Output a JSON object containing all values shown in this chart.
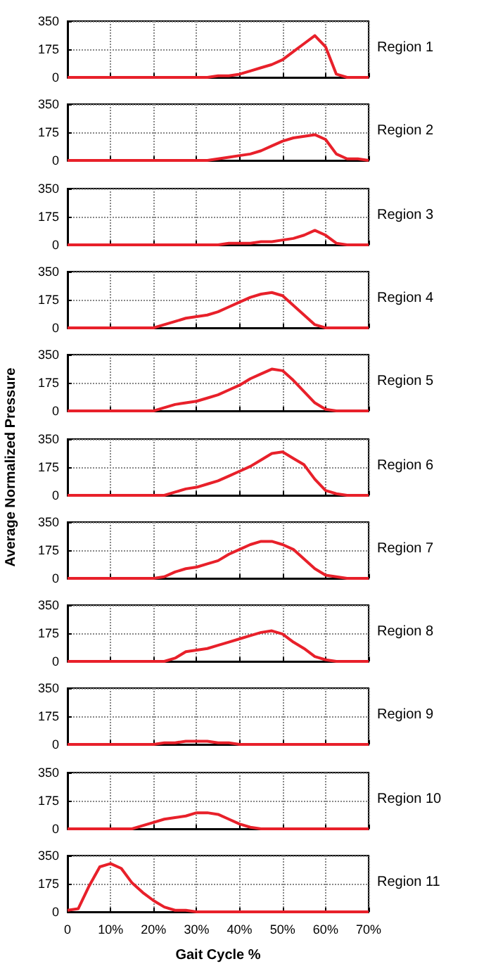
{
  "chart_data": [
    {
      "type": "line",
      "annotations": [
        "Region 1"
      ],
      "x": [
        0,
        2.5,
        5,
        7.5,
        10,
        12.5,
        15,
        17.5,
        20,
        22.5,
        25,
        27.5,
        30,
        32.5,
        35,
        37.5,
        40,
        42.5,
        45,
        47.5,
        50,
        52.5,
        55,
        57.5,
        60,
        62.5,
        65,
        67.5,
        70
      ],
      "series": [
        {
          "color": "#e8202a",
          "values": [
            0,
            0,
            0,
            0,
            0,
            0,
            0,
            0,
            0,
            0,
            0,
            0,
            0,
            0,
            10,
            10,
            20,
            40,
            60,
            80,
            110,
            160,
            210,
            260,
            190,
            20,
            0,
            0,
            0
          ]
        }
      ],
      "xlim": [
        0,
        70
      ],
      "xticks": [
        0,
        10,
        20,
        30,
        40,
        50,
        60,
        70
      ],
      "ylim": [
        0,
        350
      ],
      "yticks": [
        0,
        175,
        350
      ],
      "grid": true,
      "tick_labels": "y"
    },
    {
      "type": "line",
      "annotations": [
        "Region 2"
      ],
      "x": [
        0,
        2.5,
        5,
        7.5,
        10,
        12.5,
        15,
        17.5,
        20,
        22.5,
        25,
        27.5,
        30,
        32.5,
        35,
        37.5,
        40,
        42.5,
        45,
        47.5,
        50,
        52.5,
        55,
        57.5,
        60,
        62.5,
        65,
        67.5,
        70
      ],
      "series": [
        {
          "color": "#e8202a",
          "values": [
            0,
            0,
            0,
            0,
            0,
            0,
            0,
            0,
            0,
            0,
            0,
            0,
            0,
            0,
            10,
            20,
            30,
            40,
            60,
            90,
            120,
            140,
            150,
            160,
            130,
            40,
            10,
            10,
            0
          ]
        }
      ],
      "xlim": [
        0,
        70
      ],
      "xticks": [
        0,
        10,
        20,
        30,
        40,
        50,
        60,
        70
      ],
      "ylim": [
        0,
        350
      ],
      "yticks": [
        0,
        175,
        350
      ],
      "grid": true,
      "tick_labels": "y"
    },
    {
      "type": "line",
      "annotations": [
        "Region 3"
      ],
      "x": [
        0,
        2.5,
        5,
        7.5,
        10,
        12.5,
        15,
        17.5,
        20,
        22.5,
        25,
        27.5,
        30,
        32.5,
        35,
        37.5,
        40,
        42.5,
        45,
        47.5,
        50,
        52.5,
        55,
        57.5,
        60,
        62.5,
        65,
        67.5,
        70
      ],
      "series": [
        {
          "color": "#e8202a",
          "values": [
            0,
            0,
            0,
            0,
            0,
            0,
            0,
            0,
            0,
            0,
            0,
            0,
            0,
            0,
            0,
            10,
            10,
            10,
            20,
            20,
            30,
            40,
            60,
            90,
            60,
            10,
            0,
            0,
            0
          ]
        }
      ],
      "xlim": [
        0,
        70
      ],
      "xticks": [
        0,
        10,
        20,
        30,
        40,
        50,
        60,
        70
      ],
      "ylim": [
        0,
        350
      ],
      "yticks": [
        0,
        175,
        350
      ],
      "grid": true,
      "tick_labels": "y"
    },
    {
      "type": "line",
      "annotations": [
        "Region 4"
      ],
      "x": [
        0,
        2.5,
        5,
        7.5,
        10,
        12.5,
        15,
        17.5,
        20,
        22.5,
        25,
        27.5,
        30,
        32.5,
        35,
        37.5,
        40,
        42.5,
        45,
        47.5,
        50,
        52.5,
        55,
        57.5,
        60,
        62.5,
        65,
        67.5,
        70
      ],
      "series": [
        {
          "color": "#e8202a",
          "values": [
            0,
            0,
            0,
            0,
            0,
            0,
            0,
            0,
            0,
            20,
            40,
            60,
            70,
            80,
            100,
            130,
            160,
            190,
            210,
            220,
            200,
            140,
            80,
            20,
            0,
            0,
            0,
            0,
            0
          ]
        }
      ],
      "xlim": [
        0,
        70
      ],
      "xticks": [
        0,
        10,
        20,
        30,
        40,
        50,
        60,
        70
      ],
      "ylim": [
        0,
        350
      ],
      "yticks": [
        0,
        175,
        350
      ],
      "grid": true,
      "tick_labels": "y"
    },
    {
      "type": "line",
      "annotations": [
        "Region 5"
      ],
      "x": [
        0,
        2.5,
        5,
        7.5,
        10,
        12.5,
        15,
        17.5,
        20,
        22.5,
        25,
        27.5,
        30,
        32.5,
        35,
        37.5,
        40,
        42.5,
        45,
        47.5,
        50,
        52.5,
        55,
        57.5,
        60,
        62.5,
        65,
        67.5,
        70
      ],
      "series": [
        {
          "color": "#e8202a",
          "values": [
            0,
            0,
            0,
            0,
            0,
            0,
            0,
            0,
            0,
            20,
            40,
            50,
            60,
            80,
            100,
            130,
            160,
            200,
            230,
            260,
            250,
            190,
            120,
            50,
            10,
            0,
            0,
            0,
            0
          ]
        }
      ],
      "xlim": [
        0,
        70
      ],
      "xticks": [
        0,
        10,
        20,
        30,
        40,
        50,
        60,
        70
      ],
      "ylim": [
        0,
        350
      ],
      "yticks": [
        0,
        175,
        350
      ],
      "grid": true,
      "tick_labels": "y"
    },
    {
      "type": "line",
      "annotations": [
        "Region 6"
      ],
      "ylabel": "Average Normalized Pressure",
      "x": [
        0,
        2.5,
        5,
        7.5,
        10,
        12.5,
        15,
        17.5,
        20,
        22.5,
        25,
        27.5,
        30,
        32.5,
        35,
        37.5,
        40,
        42.5,
        45,
        47.5,
        50,
        52.5,
        55,
        57.5,
        60,
        62.5,
        65,
        67.5,
        70
      ],
      "series": [
        {
          "color": "#e8202a",
          "values": [
            0,
            0,
            0,
            0,
            0,
            0,
            0,
            0,
            0,
            0,
            20,
            40,
            50,
            70,
            90,
            120,
            150,
            180,
            220,
            260,
            270,
            230,
            190,
            100,
            30,
            10,
            0,
            0,
            0
          ]
        }
      ],
      "xlim": [
        0,
        70
      ],
      "xticks": [
        0,
        10,
        20,
        30,
        40,
        50,
        60,
        70
      ],
      "ylim": [
        0,
        350
      ],
      "yticks": [
        0,
        175,
        350
      ],
      "grid": true,
      "tick_labels": "y"
    },
    {
      "type": "line",
      "annotations": [
        "Region 7"
      ],
      "x": [
        0,
        2.5,
        5,
        7.5,
        10,
        12.5,
        15,
        17.5,
        20,
        22.5,
        25,
        27.5,
        30,
        32.5,
        35,
        37.5,
        40,
        42.5,
        45,
        47.5,
        50,
        52.5,
        55,
        57.5,
        60,
        62.5,
        65,
        67.5,
        70
      ],
      "series": [
        {
          "color": "#e8202a",
          "values": [
            0,
            0,
            0,
            0,
            0,
            0,
            0,
            0,
            0,
            10,
            40,
            60,
            70,
            90,
            110,
            150,
            180,
            210,
            230,
            230,
            210,
            180,
            120,
            60,
            20,
            10,
            0,
            0,
            0
          ]
        }
      ],
      "xlim": [
        0,
        70
      ],
      "xticks": [
        0,
        10,
        20,
        30,
        40,
        50,
        60,
        70
      ],
      "ylim": [
        0,
        350
      ],
      "yticks": [
        0,
        175,
        350
      ],
      "grid": true,
      "tick_labels": "y"
    },
    {
      "type": "line",
      "annotations": [
        "Region 8"
      ],
      "x": [
        0,
        2.5,
        5,
        7.5,
        10,
        12.5,
        15,
        17.5,
        20,
        22.5,
        25,
        27.5,
        30,
        32.5,
        35,
        37.5,
        40,
        42.5,
        45,
        47.5,
        50,
        52.5,
        55,
        57.5,
        60,
        62.5,
        65,
        67.5,
        70
      ],
      "series": [
        {
          "color": "#e8202a",
          "values": [
            0,
            0,
            0,
            0,
            0,
            0,
            0,
            0,
            0,
            0,
            20,
            60,
            70,
            80,
            100,
            120,
            140,
            160,
            180,
            190,
            170,
            120,
            80,
            30,
            10,
            0,
            0,
            0,
            0
          ]
        }
      ],
      "xlim": [
        0,
        70
      ],
      "xticks": [
        0,
        10,
        20,
        30,
        40,
        50,
        60,
        70
      ],
      "ylim": [
        0,
        350
      ],
      "yticks": [
        0,
        175,
        350
      ],
      "grid": true,
      "tick_labels": "y"
    },
    {
      "type": "line",
      "annotations": [
        "Region 9"
      ],
      "x": [
        0,
        2.5,
        5,
        7.5,
        10,
        12.5,
        15,
        17.5,
        20,
        22.5,
        25,
        27.5,
        30,
        32.5,
        35,
        37.5,
        40,
        42.5,
        45,
        47.5,
        50,
        52.5,
        55,
        57.5,
        60,
        62.5,
        65,
        67.5,
        70
      ],
      "series": [
        {
          "color": "#e8202a",
          "values": [
            0,
            0,
            0,
            0,
            0,
            0,
            0,
            0,
            0,
            10,
            10,
            20,
            20,
            20,
            10,
            10,
            0,
            0,
            0,
            0,
            0,
            0,
            0,
            0,
            0,
            0,
            0,
            0,
            0
          ]
        }
      ],
      "xlim": [
        0,
        70
      ],
      "xticks": [
        0,
        10,
        20,
        30,
        40,
        50,
        60,
        70
      ],
      "ylim": [
        0,
        350
      ],
      "yticks": [
        0,
        175,
        350
      ],
      "grid": true,
      "tick_labels": "y"
    },
    {
      "type": "line",
      "annotations": [
        "Region 10"
      ],
      "x": [
        0,
        2.5,
        5,
        7.5,
        10,
        12.5,
        15,
        17.5,
        20,
        22.5,
        25,
        27.5,
        30,
        32.5,
        35,
        37.5,
        40,
        42.5,
        45,
        47.5,
        50,
        52.5,
        55,
        57.5,
        60,
        62.5,
        65,
        67.5,
        70
      ],
      "series": [
        {
          "color": "#e8202a",
          "values": [
            0,
            0,
            0,
            0,
            0,
            0,
            0,
            20,
            40,
            60,
            70,
            80,
            100,
            100,
            90,
            60,
            30,
            10,
            0,
            0,
            0,
            0,
            0,
            0,
            0,
            0,
            0,
            0,
            0
          ]
        }
      ],
      "xlim": [
        0,
        70
      ],
      "xticks": [
        0,
        10,
        20,
        30,
        40,
        50,
        60,
        70
      ],
      "ylim": [
        0,
        350
      ],
      "yticks": [
        0,
        175,
        350
      ],
      "grid": true,
      "tick_labels": "y"
    },
    {
      "type": "line",
      "annotations": [
        "Region 11"
      ],
      "xlabel": "Gait Cycle %",
      "x": [
        0,
        2.5,
        5,
        7.5,
        10,
        12.5,
        15,
        17.5,
        20,
        22.5,
        25,
        27.5,
        30,
        32.5,
        35,
        37.5,
        40,
        42.5,
        45,
        47.5,
        50,
        52.5,
        55,
        57.5,
        60,
        62.5,
        65,
        67.5,
        70
      ],
      "series": [
        {
          "color": "#e8202a",
          "values": [
            10,
            20,
            160,
            280,
            300,
            270,
            180,
            120,
            70,
            30,
            10,
            10,
            0,
            0,
            0,
            0,
            0,
            0,
            0,
            0,
            0,
            0,
            0,
            0,
            0,
            0,
            0,
            0,
            0
          ]
        }
      ],
      "xlim": [
        0,
        70
      ],
      "xticks": [
        0,
        {
          "value": 10,
          "label": "10%"
        },
        {
          "value": 20,
          "label": "20%"
        },
        {
          "value": 30,
          "label": "30%"
        },
        {
          "value": 40,
          "label": "40%"
        },
        {
          "value": 50,
          "label": "50%"
        },
        {
          "value": 60,
          "label": "60%"
        },
        {
          "value": 70,
          "label": "70%"
        }
      ],
      "ylim": [
        0,
        350
      ],
      "yticks": [
        0,
        175,
        350
      ],
      "grid": true
    }
  ]
}
